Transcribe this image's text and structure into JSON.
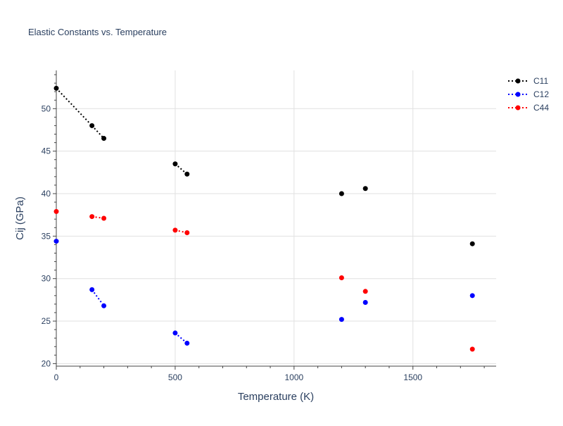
{
  "chart_data": {
    "type": "scatter",
    "title": "Elastic Constants vs. Temperature",
    "xlabel": "Temperature (K)",
    "ylabel": "Cij (GPa)",
    "xlim": [
      0,
      1850
    ],
    "ylim": [
      19.7,
      54.5
    ],
    "x_ticks": [
      0,
      500,
      1000,
      1500
    ],
    "x_minor_ticks": [
      100,
      200,
      300,
      400,
      600,
      700,
      800,
      900,
      1100,
      1200,
      1300,
      1400,
      1600,
      1700,
      1800
    ],
    "y_ticks": [
      20,
      25,
      30,
      35,
      40,
      45,
      50
    ],
    "y_minor_ticks": [
      21,
      22,
      23,
      24,
      26,
      27,
      28,
      29,
      31,
      32,
      33,
      34,
      36,
      37,
      38,
      39,
      41,
      42,
      43,
      44,
      46,
      47,
      48,
      49,
      51,
      52,
      53,
      54
    ],
    "grid": true,
    "legend": "top-right",
    "series": [
      {
        "name": "C11",
        "color": "#000000",
        "points": [
          [
            0,
            52.4
          ],
          [
            150,
            48.0
          ],
          [
            200,
            46.5
          ],
          [
            500,
            43.5
          ],
          [
            550,
            42.3
          ],
          [
            1200,
            40.0
          ],
          [
            1300,
            40.6
          ],
          [
            1750,
            34.1
          ]
        ],
        "segments": [
          [
            0,
            1
          ],
          [
            1,
            2
          ],
          [
            3,
            4
          ]
        ]
      },
      {
        "name": "C12",
        "color": "#0000ff",
        "points": [
          [
            0,
            34.4
          ],
          [
            150,
            28.7
          ],
          [
            200,
            26.8
          ],
          [
            500,
            23.6
          ],
          [
            550,
            22.4
          ],
          [
            1200,
            25.2
          ],
          [
            1300,
            27.2
          ],
          [
            1750,
            28.0
          ]
        ],
        "segments": [
          [
            1,
            2
          ],
          [
            3,
            4
          ]
        ]
      },
      {
        "name": "C44",
        "color": "#ff0000",
        "points": [
          [
            0,
            37.9
          ],
          [
            150,
            37.3
          ],
          [
            200,
            37.1
          ],
          [
            500,
            35.7
          ],
          [
            550,
            35.4
          ],
          [
            1200,
            30.1
          ],
          [
            1300,
            28.5
          ],
          [
            1750,
            21.7
          ]
        ],
        "segments": [
          [
            1,
            2
          ],
          [
            3,
            4
          ]
        ]
      }
    ]
  }
}
